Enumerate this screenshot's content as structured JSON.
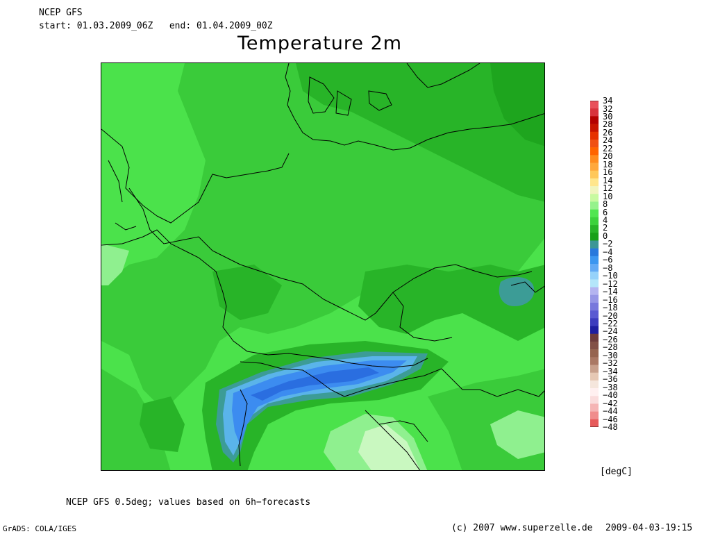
{
  "header": {
    "source": "NCEP GFS",
    "start_label": "start:",
    "start_value": "01.03.2009_06Z",
    "end_label": "end:",
    "end_value": "01.04.2009_00Z"
  },
  "title": "Temperature 2m",
  "colorbar": {
    "unit": "[degC]",
    "labels": [
      "34",
      "32",
      "30",
      "28",
      "26",
      "24",
      "22",
      "20",
      "18",
      "16",
      "14",
      "12",
      "10",
      "8",
      "6",
      "4",
      "2",
      "0",
      "−2",
      "−4",
      "−6",
      "−8",
      "−10",
      "−12",
      "−14",
      "−16",
      "−18",
      "−20",
      "−22",
      "−24",
      "−26",
      "−28",
      "−30",
      "−32",
      "−34",
      "−36",
      "−38",
      "−40",
      "−42",
      "−44",
      "−46",
      "−48"
    ],
    "colors": [
      "#e8505a",
      "#d8323c",
      "#b40000",
      "#c81400",
      "#e63200",
      "#f05014",
      "#ff6400",
      "#ff8c1e",
      "#ffa83c",
      "#ffc85a",
      "#ffe68c",
      "#f0f5be",
      "#c8faa0",
      "#96f28c",
      "#50e650",
      "#3cd23c",
      "#28b428",
      "#18a018",
      "#3c9696",
      "#2878dc",
      "#3c96f0",
      "#64aaf5",
      "#96d2fa",
      "#b4e6fa",
      "#b4b4f0",
      "#9696e6",
      "#7878dc",
      "#5a5ad2",
      "#3c3cbe",
      "#1e1ea0",
      "#6e3c3c",
      "#825046",
      "#966450",
      "#aa7864",
      "#c8a08c",
      "#e6c8b4",
      "#f5e6dc",
      "#fff0f0",
      "#fadcdc",
      "#f5b4b4",
      "#f08c8c",
      "#e65a5a"
    ]
  },
  "map": {
    "colors": {
      "background": "#4be24b",
      "mid": "#3acb3a",
      "dark": "#28b428",
      "darker": "#1ea51e",
      "light": "#8ff08f",
      "pale": "#c9f8c0",
      "teal": "#3c9c96",
      "blue_light": "#5ab4ea",
      "blue_mid": "#3c8cf0",
      "blue_dark": "#2a6ee0"
    }
  },
  "footer": {
    "model_note": "NCEP GFS 0.5deg; values based on 6h−forecasts",
    "grads": "GrADS: COLA/IGES",
    "copyright": "(c) 2007 www.superzelle.de",
    "timestamp": "2009-04-03-19:15"
  }
}
